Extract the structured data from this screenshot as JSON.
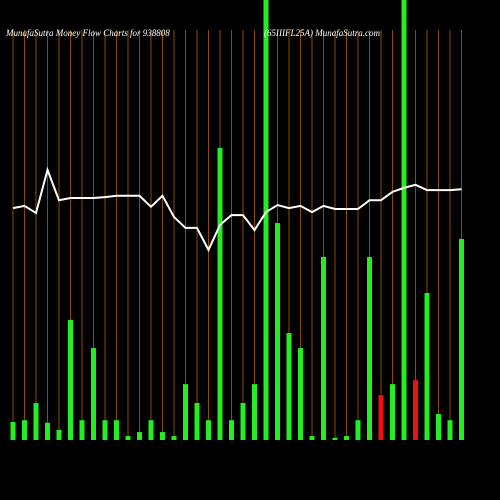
{
  "chart_data": {
    "type": "bar",
    "title": "MunafaSutra  Money Flow  Charts for 938808",
    "subtitle": "(65IIIFL25A) MunafaSutra.com",
    "categories": [
      null,
      null,
      null,
      null,
      null,
      null,
      null,
      null,
      null,
      null,
      null,
      null,
      null,
      null,
      null,
      null,
      null,
      null,
      null,
      null,
      null,
      null,
      null,
      null,
      null,
      null,
      null,
      null,
      null,
      null,
      null,
      null,
      null,
      null,
      null,
      null,
      null,
      null,
      null,
      null
    ],
    "series": [
      {
        "values": [
          4.1,
          4.5,
          8.4,
          3.9,
          2.3,
          27.3,
          4.5,
          20.9,
          4.5,
          4.5,
          0.9,
          1.8,
          4.5,
          1.8,
          0.9,
          12.7,
          8.4,
          4.5,
          66.4,
          4.5,
          8.4,
          12.7,
          100,
          49.3,
          24.3,
          20.9,
          0.9,
          41.6,
          0.5,
          0.9,
          4.5,
          41.6,
          10.2,
          12.7,
          100,
          13.6,
          33.4,
          5.9,
          4.5,
          45.7
        ],
        "colors": [
          "#22ee22",
          "#22ee22",
          "#22ee22",
          "#22ee22",
          "#22ee22",
          "#22ee22",
          "#22ee22",
          "#22ee22",
          "#22ee22",
          "#22ee22",
          "#22ee22",
          "#22ee22",
          "#22ee22",
          "#22ee22",
          "#22ee22",
          "#22ee22",
          "#22ee22",
          "#22ee22",
          "#22ee22",
          "#22ee22",
          "#22ee22",
          "#22ee22",
          "#22ee22",
          "#22ee22",
          "#22ee22",
          "#22ee22",
          "#22ee22",
          "#22ee22",
          "#22ee22",
          "#22ee22",
          "#22ee22",
          "#22ee22",
          "#ee1111",
          "#22ee22",
          "#22ee22",
          "#ee1111",
          "#22ee22",
          "#22ee22",
          "#22ee22",
          "#22ee22"
        ]
      },
      {
        "type": "line",
        "color": "#ffffff",
        "values": [
          52.7,
          53.2,
          51.6,
          61.4,
          54.5,
          55,
          55,
          55,
          55.2,
          55.5,
          55.5,
          55.5,
          53,
          55.5,
          50.7,
          48.2,
          48.2,
          43.2,
          48.9,
          51.1,
          51.1,
          47.7,
          51.8,
          53.4,
          52.7,
          53.2,
          51.8,
          53.2,
          52.5,
          52.5,
          52.5,
          54.5,
          54.5,
          56.4,
          57.3,
          58,
          56.8,
          56.8,
          56.8,
          57
        ]
      }
    ],
    "ylim": [
      0,
      100
    ],
    "gridline_color": "#8b4a00"
  }
}
